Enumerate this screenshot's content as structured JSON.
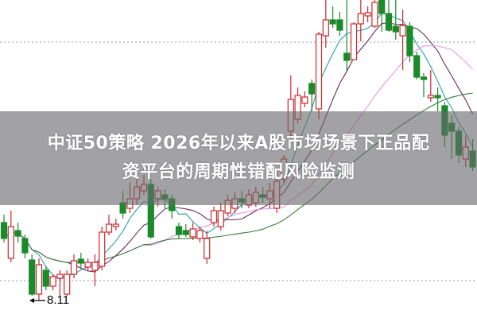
{
  "banner": {
    "line1": "中证50策略 2026年以来A股市场场景下正品配",
    "line2": "资平台的周期性错配风险监测"
  },
  "chart_data": {
    "type": "candlestick",
    "title": "",
    "up_color": "#d0272e",
    "down_color": "#1a8a2a",
    "up_style": "hollow",
    "down_style": "filled",
    "grid": false,
    "reference_lines": [
      11.36,
      8.36
    ],
    "low_annotation": {
      "label": "8.11",
      "value": 8.11,
      "candle_index": 5
    },
    "moving_averages": [
      {
        "color": "#2aa0a0"
      },
      {
        "color": "#6a2a5a"
      },
      {
        "color": "#e39ae0"
      },
      {
        "color": "#3a7a3a"
      }
    ],
    "ohlc": [
      [
        9.09,
        9.19,
        8.84,
        8.89
      ],
      [
        8.64,
        9.24,
        8.59,
        9.04
      ],
      [
        8.99,
        9.09,
        8.84,
        8.92
      ],
      [
        8.89,
        8.94,
        8.64,
        8.71
      ],
      [
        8.62,
        8.69,
        8.17,
        8.19
      ],
      [
        8.19,
        8.64,
        8.11,
        8.56
      ],
      [
        8.49,
        8.54,
        8.24,
        8.29
      ],
      [
        8.29,
        8.44,
        8.24,
        8.41
      ],
      [
        8.39,
        8.49,
        8.17,
        8.44
      ],
      [
        8.19,
        8.49,
        8.17,
        8.44
      ],
      [
        8.44,
        8.69,
        8.39,
        8.61
      ],
      [
        8.63,
        8.71,
        8.51,
        8.58
      ],
      [
        8.53,
        8.64,
        8.49,
        8.59
      ],
      [
        8.49,
        8.69,
        8.29,
        8.59
      ],
      [
        8.54,
        9.04,
        8.49,
        8.97
      ],
      [
        8.97,
        9.19,
        8.93,
        9.07
      ],
      [
        9.04,
        9.14,
        8.99,
        9.07
      ],
      [
        9.34,
        9.49,
        9.14,
        9.21
      ],
      [
        9.27,
        9.59,
        9.21,
        9.39
      ],
      [
        9.39,
        9.64,
        9.31,
        9.54
      ],
      [
        9.49,
        9.69,
        9.44,
        9.57
      ],
      [
        9.57,
        9.64,
        8.89,
        8.91
      ],
      [
        9.39,
        9.54,
        9.29,
        9.49
      ],
      [
        9.44,
        9.51,
        9.27,
        9.39
      ],
      [
        9.39,
        9.44,
        9.14,
        9.24
      ],
      [
        9.04,
        9.09,
        8.89,
        8.94
      ],
      [
        8.99,
        9.07,
        8.91,
        8.94
      ],
      [
        8.91,
        9.09,
        8.87,
        9.01
      ],
      [
        8.89,
        9.04,
        8.84,
        8.99
      ],
      [
        8.64,
        8.99,
        8.57,
        8.89
      ],
      [
        9.09,
        9.29,
        9.04,
        9.24
      ],
      [
        9.04,
        9.34,
        8.99,
        9.24
      ],
      [
        9.21,
        9.44,
        9.17,
        9.37
      ],
      [
        9.27,
        9.47,
        9.21,
        9.39
      ],
      [
        9.39,
        9.49,
        9.27,
        9.35
      ],
      [
        9.31,
        9.51,
        9.27,
        9.44
      ],
      [
        9.34,
        9.54,
        9.29,
        9.47
      ],
      [
        9.44,
        9.54,
        9.34,
        9.41
      ],
      [
        9.39,
        9.59,
        9.27,
        9.49
      ],
      [
        9.27,
        9.74,
        9.21,
        9.61
      ],
      [
        9.64,
        9.94,
        9.59,
        9.89
      ],
      [
        10.24,
        10.94,
        10.14,
        10.64
      ],
      [
        10.39,
        10.79,
        10.34,
        10.69
      ],
      [
        10.59,
        10.74,
        10.54,
        10.67
      ],
      [
        10.84,
        10.89,
        10.49,
        10.71
      ],
      [
        10.52,
        11.49,
        10.39,
        11.46
      ],
      [
        11.44,
        11.89,
        11.29,
        11.64
      ],
      [
        11.64,
        11.81,
        11.54,
        11.59
      ],
      [
        11.64,
        11.74,
        11.44,
        11.51
      ],
      [
        11.22,
        11.89,
        10.99,
        11.13
      ],
      [
        11.14,
        11.61,
        11.14,
        11.59
      ],
      [
        11.59,
        11.89,
        11.37,
        11.72
      ],
      [
        11.69,
        11.81,
        11.61,
        11.73
      ],
      [
        11.56,
        11.89,
        11.54,
        11.86
      ],
      [
        11.89,
        11.89,
        11.49,
        11.72
      ],
      [
        11.72,
        11.89,
        11.49,
        11.51
      ],
      [
        11.56,
        11.89,
        11.39,
        11.49
      ],
      [
        11.44,
        11.77,
        11.01,
        11.57
      ],
      [
        11.56,
        11.61,
        11.11,
        11.19
      ],
      [
        11.19,
        11.24,
        10.89,
        10.92
      ],
      [
        10.92,
        10.97,
        10.67,
        10.89
      ],
      [
        10.66,
        11.01,
        10.61,
        10.69
      ],
      [
        10.69,
        10.79,
        10.49,
        10.66
      ],
      [
        10.56,
        10.61,
        10.04,
        10.19
      ],
      [
        10.34,
        10.44,
        9.89,
        10.24
      ],
      [
        10.24,
        10.29,
        9.84,
        9.94
      ],
      [
        9.89,
        10.19,
        9.79,
        10.04
      ],
      [
        9.99,
        10.14,
        9.74,
        9.79
      ]
    ]
  }
}
